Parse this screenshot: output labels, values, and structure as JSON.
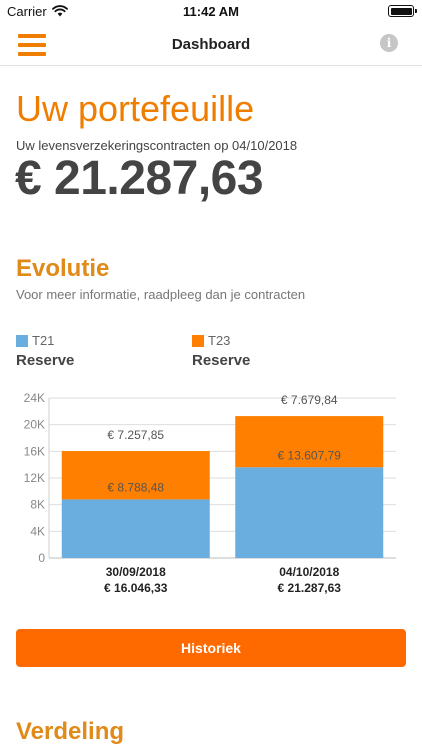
{
  "status_bar": {
    "carrier": "Carrier",
    "time": "11:42 AM"
  },
  "nav": {
    "title": "Dashboard",
    "menu_icon": "hamburger-menu-icon",
    "info_icon": "info-icon",
    "accent_color": "#ef7d00"
  },
  "portfolio": {
    "title": "Uw portefeuille",
    "subtitle": "Uw levensverzekeringscontracten op 04/10/2018",
    "total": "€ 21.287,63"
  },
  "evolution": {
    "title": "Evolutie",
    "subtitle": "Voor meer informatie, raadpleeg dan je contracten",
    "legend": [
      {
        "name": "T21",
        "sub": "Reserve",
        "color": "#6aaedf"
      },
      {
        "name": "T23",
        "sub": "Reserve",
        "color": "#ff7f00"
      }
    ]
  },
  "chart_data": {
    "type": "bar",
    "stacked": true,
    "categories": [
      "30/09/2018",
      "04/10/2018"
    ],
    "category_totals": [
      "€ 16.046,33",
      "€ 21.287,63"
    ],
    "series": [
      {
        "name": "T21",
        "values": [
          8788.48,
          13607.79
        ],
        "labels": [
          "€ 8.788,48",
          "€ 13.607,79"
        ],
        "color": "#6aaedf"
      },
      {
        "name": "T23",
        "values": [
          7257.85,
          7679.84
        ],
        "labels": [
          "€ 7.257,85",
          "€ 7.679,84"
        ],
        "color": "#ff7f00"
      }
    ],
    "ylim": [
      0,
      24000
    ],
    "y_ticks": [
      0,
      4000,
      8000,
      12000,
      16000,
      20000,
      24000
    ],
    "y_tick_labels": [
      "0",
      "4K",
      "8K",
      "12K",
      "16K",
      "20K",
      "24K"
    ],
    "grid": true,
    "legend_position": "top-left"
  },
  "history_button": {
    "label": "Historiek"
  },
  "distribution": {
    "title": "Verdeling"
  }
}
